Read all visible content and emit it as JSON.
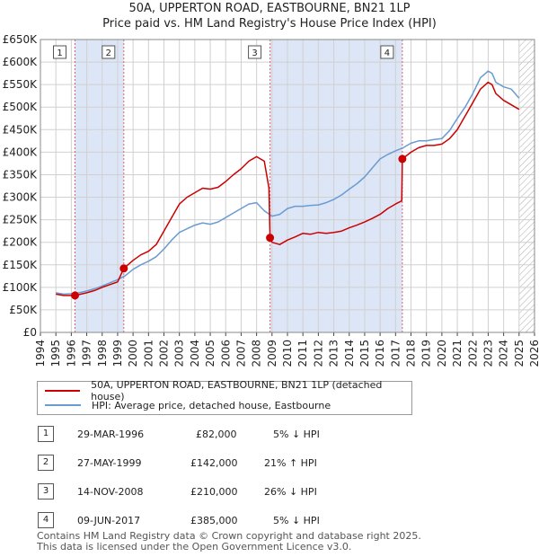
{
  "title_line1": "50A, UPPERTON ROAD, EASTBOURNE, BN21 1LP",
  "title_line2": "Price paid vs. HM Land Registry's House Price Index (HPI)",
  "colors": {
    "property": "#cc0000",
    "hpi": "#6a9bd1",
    "shade": "#dde6f7",
    "grid": "#d0d0d0",
    "vline": "#e06060"
  },
  "legend": {
    "property": "50A, UPPERTON ROAD, EASTBOURNE, BN21 1LP (detached house)",
    "hpi": "HPI: Average price, detached house, Eastbourne"
  },
  "transactions": [
    {
      "num": "1",
      "date": "29-MAR-1996",
      "price": "£82,000",
      "hpi": "5% ↓ HPI"
    },
    {
      "num": "2",
      "date": "27-MAY-1999",
      "price": "£142,000",
      "hpi": "21% ↑ HPI"
    },
    {
      "num": "3",
      "date": "14-NOV-2008",
      "price": "£210,000",
      "hpi": "26% ↓ HPI"
    },
    {
      "num": "4",
      "date": "09-JUN-2017",
      "price": "£385,000",
      "hpi": "5% ↓ HPI"
    }
  ],
  "footer_line1": "Contains HM Land Registry data © Crown copyright and database right 2025.",
  "footer_line2": "This data is licensed under the Open Government Licence v3.0.",
  "chart_data": {
    "type": "line",
    "title": "50A, UPPERTON ROAD, EASTBOURNE, BN21 1LP",
    "subtitle": "Price paid vs. HM Land Registry's House Price Index (HPI)",
    "xlim": [
      1994,
      2026
    ],
    "ylim": [
      0,
      650000
    ],
    "x_ticks": [
      "1994",
      "1995",
      "1996",
      "1997",
      "1998",
      "1999",
      "2000",
      "2001",
      "2002",
      "2003",
      "2004",
      "2005",
      "2006",
      "2007",
      "2008",
      "2009",
      "2010",
      "2011",
      "2012",
      "2013",
      "2014",
      "2015",
      "2016",
      "2017",
      "2018",
      "2019",
      "2020",
      "2021",
      "2022",
      "2023",
      "2024",
      "2025",
      "2026"
    ],
    "y_ticks": [
      {
        "value": 0,
        "label": "£0"
      },
      {
        "value": 50000,
        "label": "£50K"
      },
      {
        "value": 100000,
        "label": "£100K"
      },
      {
        "value": 150000,
        "label": "£150K"
      },
      {
        "value": 200000,
        "label": "£200K"
      },
      {
        "value": 250000,
        "label": "£250K"
      },
      {
        "value": 300000,
        "label": "£300K"
      },
      {
        "value": 350000,
        "label": "£350K"
      },
      {
        "value": 400000,
        "label": "£400K"
      },
      {
        "value": 450000,
        "label": "£450K"
      },
      {
        "value": 500000,
        "label": "£500K"
      },
      {
        "value": 550000,
        "label": "£550K"
      },
      {
        "value": 600000,
        "label": "£600K"
      },
      {
        "value": 650000,
        "label": "£650K"
      }
    ],
    "shaded_ranges": [
      [
        1996.24,
        1999.4
      ],
      [
        2008.87,
        2017.44
      ]
    ],
    "future_hatch_from": 2025.0,
    "sales": [
      {
        "label": "1",
        "x": 1996.24,
        "y": 82000
      },
      {
        "label": "2",
        "x": 1999.4,
        "y": 142000
      },
      {
        "label": "3",
        "x": 2008.87,
        "y": 210000
      },
      {
        "label": "4",
        "x": 2017.44,
        "y": 385000
      }
    ],
    "series": [
      {
        "name": "HPI: Average price, detached house, Eastbourne",
        "x": [
          1995.0,
          1995.5,
          1996.0,
          1996.5,
          1997.0,
          1997.5,
          1998.0,
          1998.5,
          1999.0,
          1999.5,
          2000.0,
          2000.5,
          2001.0,
          2001.5,
          2002.0,
          2002.5,
          2003.0,
          2003.5,
          2004.0,
          2004.5,
          2005.0,
          2005.5,
          2006.0,
          2006.5,
          2007.0,
          2007.5,
          2008.0,
          2008.5,
          2009.0,
          2009.5,
          2010.0,
          2010.5,
          2011.0,
          2011.5,
          2012.0,
          2012.5,
          2013.0,
          2013.5,
          2014.0,
          2014.5,
          2015.0,
          2015.5,
          2016.0,
          2016.5,
          2017.0,
          2017.5,
          2018.0,
          2018.5,
          2019.0,
          2019.5,
          2020.0,
          2020.5,
          2021.0,
          2021.5,
          2022.0,
          2022.5,
          2023.0,
          2023.25,
          2023.5,
          2024.0,
          2024.5,
          2025.0
        ],
        "values": [
          88000,
          85000,
          86000,
          88000,
          92000,
          97000,
          103000,
          110000,
          117000,
          126000,
          140000,
          150000,
          158000,
          168000,
          185000,
          205000,
          222000,
          230000,
          238000,
          243000,
          240000,
          245000,
          255000,
          265000,
          275000,
          285000,
          288000,
          270000,
          258000,
          262000,
          275000,
          280000,
          280000,
          282000,
          283000,
          288000,
          295000,
          305000,
          318000,
          330000,
          345000,
          365000,
          385000,
          395000,
          403000,
          410000,
          420000,
          425000,
          425000,
          428000,
          430000,
          448000,
          475000,
          500000,
          530000,
          565000,
          580000,
          575000,
          555000,
          545000,
          540000,
          520000
        ]
      },
      {
        "name": "50A, UPPERTON ROAD, EASTBOURNE, BN21 1LP (detached house)",
        "x": [
          1995.0,
          1995.5,
          1996.0,
          1996.24,
          1996.5,
          1997.0,
          1997.5,
          1998.0,
          1998.5,
          1999.0,
          1999.4,
          2000.0,
          2000.5,
          2001.0,
          2001.5,
          2002.0,
          2002.5,
          2003.0,
          2003.5,
          2004.0,
          2004.5,
          2005.0,
          2005.5,
          2006.0,
          2006.5,
          2007.0,
          2007.5,
          2008.0,
          2008.5,
          2008.8,
          2008.87,
          2009.0,
          2009.5,
          2010.0,
          2010.5,
          2011.0,
          2011.5,
          2012.0,
          2012.5,
          2013.0,
          2013.5,
          2014.0,
          2014.5,
          2015.0,
          2015.5,
          2016.0,
          2016.5,
          2017.0,
          2017.4,
          2017.44,
          2018.0,
          2018.5,
          2019.0,
          2019.5,
          2020.0,
          2020.5,
          2021.0,
          2021.5,
          2022.0,
          2022.5,
          2023.0,
          2023.25,
          2023.5,
          2024.0,
          2024.5,
          2025.0
        ],
        "values": [
          85000,
          82000,
          82000,
          82000,
          84000,
          88000,
          93000,
          100000,
          106000,
          112000,
          142000,
          160000,
          172000,
          180000,
          195000,
          225000,
          255000,
          285000,
          300000,
          310000,
          320000,
          318000,
          322000,
          335000,
          350000,
          363000,
          380000,
          390000,
          380000,
          320000,
          210000,
          200000,
          195000,
          205000,
          212000,
          220000,
          218000,
          222000,
          220000,
          222000,
          225000,
          232000,
          238000,
          245000,
          253000,
          262000,
          275000,
          285000,
          292000,
          385000,
          400000,
          410000,
          415000,
          415000,
          418000,
          430000,
          450000,
          480000,
          510000,
          540000,
          555000,
          550000,
          530000,
          515000,
          505000,
          495000
        ]
      }
    ]
  }
}
